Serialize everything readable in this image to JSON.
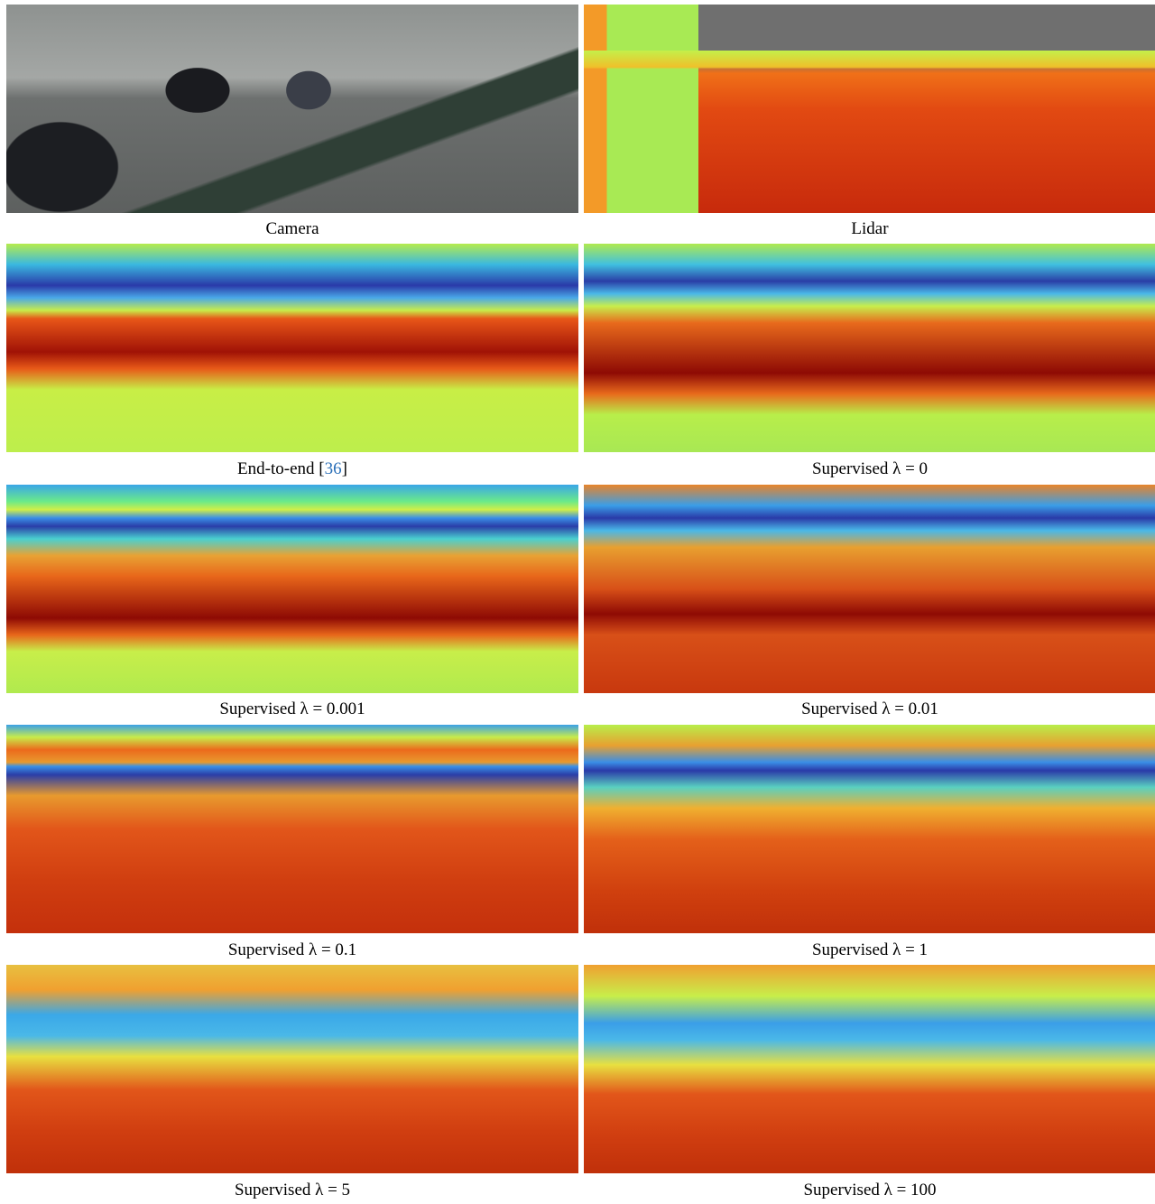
{
  "panels": [
    {
      "caption": "Camera"
    },
    {
      "caption": "Lidar"
    },
    {
      "caption": "End-to-end",
      "citation": [
        "[",
        "36",
        "]"
      ]
    },
    {
      "caption": "Supervised λ = 0"
    },
    {
      "caption": "Supervised λ = 0.001"
    },
    {
      "caption": "Supervised λ = 0.01"
    },
    {
      "caption": "Supervised λ = 0.1"
    },
    {
      "caption": "Supervised λ = 1"
    },
    {
      "caption": "Supervised λ = 5"
    },
    {
      "caption": "Supervised λ = 100"
    }
  ]
}
